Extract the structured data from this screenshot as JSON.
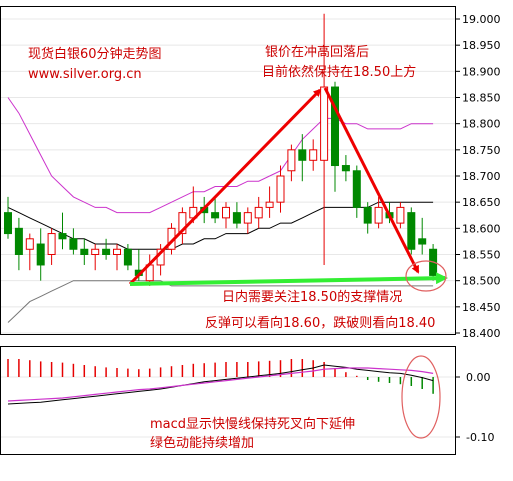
{
  "annotations": {
    "title": "现货白银60分钟走势图",
    "url": "www.silver.org.cn",
    "note_peak_1": "银价在冲高回落后",
    "note_peak_2": "目前依然保持在18.50上方",
    "note_support": "日内需要关注18.50的支撑情况",
    "note_outlook": "反弹可以看向18.60，跌破则看向18.40",
    "note_macd_1": "macd显示快慢线保持死叉向下延伸",
    "note_macd_2": "绿色动能持续增加"
  },
  "colors": {
    "up": "#e60000",
    "down": "#008800",
    "upper_band": "#cc33cc",
    "middle_band": "#000000",
    "lower_band": "#777777",
    "trend_arrow": "#ee0000",
    "support_arrow": "#33ee33",
    "macd_dif": "#000000",
    "macd_dea": "#cc33cc",
    "annotation_text": "#cc0000",
    "circle": "#e06060"
  },
  "chart_data": [
    {
      "type": "candlestick",
      "title": "",
      "y_ticks": [
        "19.000",
        "18.950",
        "18.900",
        "18.850",
        "18.800",
        "18.750",
        "18.700",
        "18.650",
        "18.600",
        "18.550",
        "18.500",
        "18.450",
        "18.400"
      ],
      "ylim": [
        18.4,
        19.0
      ],
      "grid": true,
      "candles": [
        {
          "o": 18.63,
          "h": 18.66,
          "l": 18.58,
          "c": 18.59
        },
        {
          "o": 18.6,
          "h": 18.62,
          "l": 18.52,
          "c": 18.55
        },
        {
          "o": 18.56,
          "h": 18.59,
          "l": 18.52,
          "c": 18.58
        },
        {
          "o": 18.57,
          "h": 18.6,
          "l": 18.5,
          "c": 18.53
        },
        {
          "o": 18.55,
          "h": 18.6,
          "l": 18.53,
          "c": 18.59
        },
        {
          "o": 18.59,
          "h": 18.63,
          "l": 18.56,
          "c": 18.58
        },
        {
          "o": 18.58,
          "h": 18.6,
          "l": 18.55,
          "c": 18.56
        },
        {
          "o": 18.56,
          "h": 18.58,
          "l": 18.53,
          "c": 18.55
        },
        {
          "o": 18.55,
          "h": 18.57,
          "l": 18.52,
          "c": 18.56
        },
        {
          "o": 18.56,
          "h": 18.58,
          "l": 18.54,
          "c": 18.55
        },
        {
          "o": 18.55,
          "h": 18.57,
          "l": 18.52,
          "c": 18.56
        },
        {
          "o": 18.56,
          "h": 18.57,
          "l": 18.52,
          "c": 18.53
        },
        {
          "o": 18.52,
          "h": 18.56,
          "l": 18.5,
          "c": 18.51
        },
        {
          "o": 18.5,
          "h": 18.55,
          "l": 18.49,
          "c": 18.53
        },
        {
          "o": 18.53,
          "h": 18.57,
          "l": 18.51,
          "c": 18.56
        },
        {
          "o": 18.56,
          "h": 18.61,
          "l": 18.55,
          "c": 18.6
        },
        {
          "o": 18.59,
          "h": 18.64,
          "l": 18.57,
          "c": 18.63
        },
        {
          "o": 18.62,
          "h": 18.68,
          "l": 18.61,
          "c": 18.64
        },
        {
          "o": 18.64,
          "h": 18.66,
          "l": 18.61,
          "c": 18.63
        },
        {
          "o": 18.63,
          "h": 18.66,
          "l": 18.61,
          "c": 18.62
        },
        {
          "o": 18.62,
          "h": 18.65,
          "l": 18.6,
          "c": 18.64
        },
        {
          "o": 18.63,
          "h": 18.65,
          "l": 18.6,
          "c": 18.61
        },
        {
          "o": 18.61,
          "h": 18.64,
          "l": 18.59,
          "c": 18.63
        },
        {
          "o": 18.62,
          "h": 18.66,
          "l": 18.6,
          "c": 18.64
        },
        {
          "o": 18.64,
          "h": 18.68,
          "l": 18.62,
          "c": 18.65
        },
        {
          "o": 18.65,
          "h": 18.72,
          "l": 18.63,
          "c": 18.7
        },
        {
          "o": 18.71,
          "h": 18.76,
          "l": 18.69,
          "c": 18.75
        },
        {
          "o": 18.75,
          "h": 18.78,
          "l": 18.69,
          "c": 18.73
        },
        {
          "o": 18.73,
          "h": 18.77,
          "l": 18.71,
          "c": 18.75
        },
        {
          "o": 18.73,
          "h": 19.01,
          "l": 18.53,
          "c": 18.87
        },
        {
          "o": 18.87,
          "h": 18.88,
          "l": 18.67,
          "c": 18.72
        },
        {
          "o": 18.72,
          "h": 18.74,
          "l": 18.69,
          "c": 18.71
        },
        {
          "o": 18.71,
          "h": 18.72,
          "l": 18.62,
          "c": 18.64
        },
        {
          "o": 18.64,
          "h": 18.65,
          "l": 18.59,
          "c": 18.61
        },
        {
          "o": 18.61,
          "h": 18.66,
          "l": 18.6,
          "c": 18.64
        },
        {
          "o": 18.63,
          "h": 18.65,
          "l": 18.61,
          "c": 18.62
        },
        {
          "o": 18.61,
          "h": 18.65,
          "l": 18.6,
          "c": 18.64
        },
        {
          "o": 18.63,
          "h": 18.64,
          "l": 18.55,
          "c": 18.56
        },
        {
          "o": 18.58,
          "h": 18.62,
          "l": 18.55,
          "c": 18.57
        },
        {
          "o": 18.56,
          "h": 18.57,
          "l": 18.5,
          "c": 18.51
        }
      ],
      "upper_band": [
        18.85,
        18.82,
        18.78,
        18.74,
        18.7,
        18.68,
        18.66,
        18.65,
        18.64,
        18.64,
        18.63,
        18.63,
        18.63,
        18.63,
        18.64,
        18.65,
        18.66,
        18.67,
        18.67,
        18.68,
        18.68,
        18.68,
        18.69,
        18.69,
        18.7,
        18.71,
        18.74,
        18.77,
        18.79,
        18.81,
        18.81,
        18.8,
        18.8,
        18.79,
        18.79,
        18.79,
        18.79,
        18.8,
        18.8,
        18.8
      ],
      "middle_band": [
        18.64,
        18.63,
        18.62,
        18.61,
        18.6,
        18.59,
        18.58,
        18.58,
        18.57,
        18.57,
        18.57,
        18.56,
        18.56,
        18.56,
        18.56,
        18.56,
        18.57,
        18.57,
        18.58,
        18.58,
        18.59,
        18.59,
        18.59,
        18.6,
        18.6,
        18.61,
        18.61,
        18.62,
        18.63,
        18.64,
        18.64,
        18.64,
        18.64,
        18.64,
        18.65,
        18.65,
        18.65,
        18.65,
        18.65,
        18.65
      ],
      "lower_band": [
        18.42,
        18.44,
        18.46,
        18.47,
        18.48,
        18.49,
        18.5,
        18.5,
        18.5,
        18.5,
        18.5,
        18.5,
        18.5,
        18.5,
        18.5,
        18.49,
        18.49,
        18.49,
        18.49,
        18.49,
        18.49,
        18.49,
        18.49,
        18.49,
        18.49,
        18.49,
        18.49,
        18.49,
        18.49,
        18.49,
        18.49,
        18.49,
        18.49,
        18.49,
        18.49,
        18.49,
        18.49,
        18.49,
        18.49,
        18.49
      ]
    },
    {
      "type": "macd",
      "title": "",
      "y_ticks": [
        "0.00",
        "-0.10"
      ],
      "ylim": [
        -0.125,
        0.045
      ],
      "histogram": [
        0.03,
        0.03,
        0.028,
        0.026,
        0.025,
        0.024,
        0.022,
        0.02,
        0.018,
        0.016,
        0.015,
        0.014,
        0.013,
        0.014,
        0.016,
        0.018,
        0.02,
        0.022,
        0.023,
        0.024,
        0.025,
        0.025,
        0.025,
        0.026,
        0.027,
        0.028,
        0.03,
        0.03,
        0.028,
        0.025,
        0.015,
        0.008,
        0.002,
        -0.005,
        -0.008,
        -0.01,
        -0.012,
        -0.015,
        -0.02,
        -0.028
      ],
      "dif": [
        -0.045,
        -0.044,
        -0.043,
        -0.042,
        -0.04,
        -0.038,
        -0.036,
        -0.034,
        -0.032,
        -0.03,
        -0.028,
        -0.026,
        -0.024,
        -0.022,
        -0.02,
        -0.017,
        -0.014,
        -0.011,
        -0.008,
        -0.006,
        -0.004,
        -0.002,
        0.0,
        0.002,
        0.004,
        0.006,
        0.009,
        0.012,
        0.015,
        0.02,
        0.018,
        0.016,
        0.013,
        0.011,
        0.009,
        0.007,
        0.006,
        0.003,
        -0.001,
        -0.006
      ],
      "dea": [
        -0.04,
        -0.039,
        -0.038,
        -0.037,
        -0.036,
        -0.035,
        -0.033,
        -0.031,
        -0.029,
        -0.027,
        -0.025,
        -0.023,
        -0.021,
        -0.02,
        -0.018,
        -0.016,
        -0.014,
        -0.012,
        -0.01,
        -0.008,
        -0.006,
        -0.004,
        -0.002,
        0.0,
        0.002,
        0.004,
        0.006,
        0.008,
        0.01,
        0.013,
        0.014,
        0.015,
        0.015,
        0.015,
        0.014,
        0.013,
        0.012,
        0.011,
        0.009,
        0.006
      ]
    }
  ]
}
